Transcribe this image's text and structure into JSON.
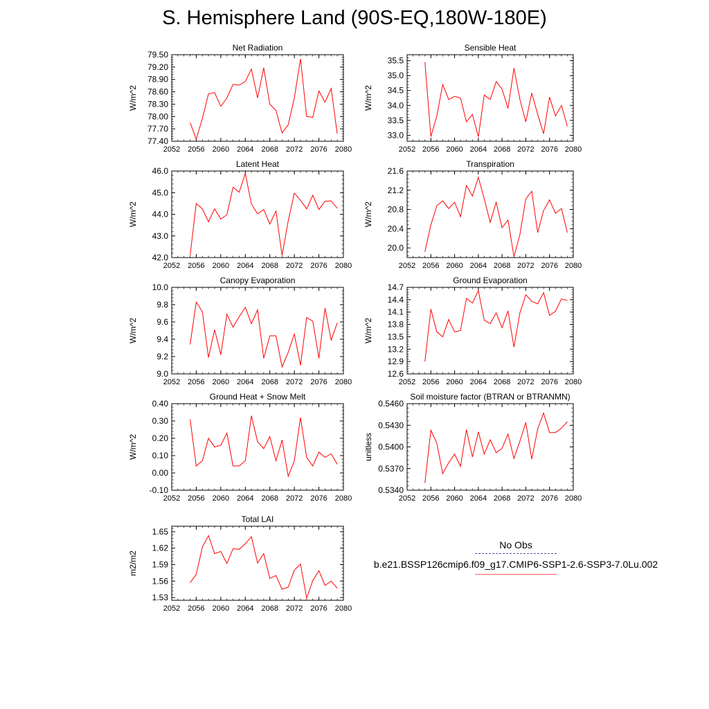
{
  "page": {
    "title": "S. Hemisphere Land (90S-EQ,180W-180E)"
  },
  "legend": {
    "obs_label": "No Obs",
    "model_label": "b.e21.BSSP126cmip6.f09_g17.CMIP6-SSP1-2.6-SSP3-7.0Lu.002",
    "obs_color": "#4a4aa8",
    "model_color": "#ff0000"
  },
  "chart_data": [
    {
      "type": "line",
      "title": "Net Radiation",
      "ylabel": "W/m^2",
      "xlabel": "",
      "x": [
        2055,
        2056,
        2057,
        2058,
        2059,
        2060,
        2061,
        2062,
        2063,
        2064,
        2065,
        2066,
        2067,
        2068,
        2069,
        2070,
        2071,
        2072,
        2073,
        2074,
        2075,
        2076,
        2077,
        2078,
        2079
      ],
      "xlim": [
        2052,
        2080
      ],
      "xticks": [
        "2052",
        "2056",
        "2060",
        "2064",
        "2068",
        "2072",
        "2076",
        "2080"
      ],
      "ylim": [
        77.4,
        79.5
      ],
      "yticks": [
        "77.40",
        "77.70",
        "78.00",
        "78.30",
        "78.60",
        "78.90",
        "79.20",
        "79.50"
      ],
      "series": [
        {
          "color": "#ff0000",
          "values": [
            77.85,
            77.45,
            77.95,
            78.55,
            78.58,
            78.25,
            78.45,
            78.78,
            78.76,
            78.85,
            79.15,
            78.45,
            79.18,
            78.3,
            78.15,
            77.6,
            77.8,
            78.45,
            79.4,
            78.0,
            77.98,
            78.62,
            78.35,
            78.68,
            77.58
          ]
        }
      ]
    },
    {
      "type": "line",
      "title": "Sensible Heat",
      "ylabel": "W/m^2",
      "xlabel": "",
      "x": [
        2055,
        2056,
        2057,
        2058,
        2059,
        2060,
        2061,
        2062,
        2063,
        2064,
        2065,
        2066,
        2067,
        2068,
        2069,
        2070,
        2071,
        2072,
        2073,
        2074,
        2075,
        2076,
        2077,
        2078,
        2079
      ],
      "xlim": [
        2052,
        2080
      ],
      "xticks": [
        "2052",
        "2056",
        "2060",
        "2064",
        "2068",
        "2072",
        "2076",
        "2080"
      ],
      "ylim": [
        32.8,
        35.7
      ],
      "yticks": [
        "33.0",
        "33.5",
        "34.0",
        "34.5",
        "35.0",
        "35.5"
      ],
      "series": [
        {
          "color": "#ff0000",
          "values": [
            35.45,
            32.95,
            33.65,
            34.7,
            34.2,
            34.3,
            34.25,
            33.45,
            33.7,
            32.95,
            34.35,
            34.2,
            34.8,
            34.55,
            33.9,
            35.25,
            34.2,
            33.45,
            34.42,
            33.7,
            33.05,
            34.28,
            33.65,
            34.0,
            33.3
          ]
        }
      ]
    },
    {
      "type": "line",
      "title": "Latent Heat",
      "ylabel": "W/m^2",
      "xlabel": "",
      "x": [
        2055,
        2056,
        2057,
        2058,
        2059,
        2060,
        2061,
        2062,
        2063,
        2064,
        2065,
        2066,
        2067,
        2068,
        2069,
        2070,
        2071,
        2072,
        2073,
        2074,
        2075,
        2076,
        2077,
        2078,
        2079
      ],
      "xlim": [
        2052,
        2080
      ],
      "xticks": [
        "2052",
        "2056",
        "2060",
        "2064",
        "2068",
        "2072",
        "2076",
        "2080"
      ],
      "ylim": [
        42.0,
        46.0
      ],
      "yticks": [
        "42.0",
        "43.0",
        "44.0",
        "45.0",
        "46.0"
      ],
      "series": [
        {
          "color": "#ff0000",
          "values": [
            42.1,
            44.5,
            44.25,
            43.65,
            44.25,
            43.78,
            43.98,
            45.25,
            45.02,
            45.88,
            44.48,
            44.02,
            44.22,
            43.55,
            44.15,
            42.1,
            43.7,
            44.98,
            44.65,
            44.25,
            44.88,
            44.22,
            44.6,
            44.62,
            44.28
          ]
        }
      ]
    },
    {
      "type": "line",
      "title": "Transpiration",
      "ylabel": "W/m^2",
      "xlabel": "",
      "x": [
        2055,
        2056,
        2057,
        2058,
        2059,
        2060,
        2061,
        2062,
        2063,
        2064,
        2065,
        2066,
        2067,
        2068,
        2069,
        2070,
        2071,
        2072,
        2073,
        2074,
        2075,
        2076,
        2077,
        2078,
        2079
      ],
      "xlim": [
        2052,
        2080
      ],
      "xticks": [
        "2052",
        "2056",
        "2060",
        "2064",
        "2068",
        "2072",
        "2076",
        "2080"
      ],
      "ylim": [
        19.8,
        21.6
      ],
      "yticks": [
        "20.0",
        "20.4",
        "20.8",
        "21.2",
        "21.6"
      ],
      "series": [
        {
          "color": "#ff0000",
          "values": [
            19.92,
            20.48,
            20.88,
            20.98,
            20.82,
            20.95,
            20.65,
            21.3,
            21.08,
            21.47,
            21.02,
            20.53,
            20.95,
            20.42,
            20.58,
            19.82,
            20.28,
            21.02,
            21.18,
            20.32,
            20.78,
            21.0,
            20.72,
            20.82,
            20.32
          ]
        }
      ]
    },
    {
      "type": "line",
      "title": "Canopy Evaporation",
      "ylabel": "W/m^2",
      "xlabel": "",
      "x": [
        2055,
        2056,
        2057,
        2058,
        2059,
        2060,
        2061,
        2062,
        2063,
        2064,
        2065,
        2066,
        2067,
        2068,
        2069,
        2070,
        2071,
        2072,
        2073,
        2074,
        2075,
        2076,
        2077,
        2078,
        2079
      ],
      "xlim": [
        2052,
        2080
      ],
      "xticks": [
        "2052",
        "2056",
        "2060",
        "2064",
        "2068",
        "2072",
        "2076",
        "2080"
      ],
      "ylim": [
        9.0,
        10.0
      ],
      "yticks": [
        "9.0",
        "9.2",
        "9.4",
        "9.6",
        "9.8",
        "10.0"
      ],
      "series": [
        {
          "color": "#ff0000",
          "values": [
            9.34,
            9.83,
            9.72,
            9.19,
            9.51,
            9.22,
            9.69,
            9.54,
            9.66,
            9.77,
            9.58,
            9.74,
            9.18,
            9.44,
            9.44,
            9.08,
            9.25,
            9.46,
            9.1,
            9.65,
            9.61,
            9.18,
            9.76,
            9.39,
            9.59
          ]
        }
      ]
    },
    {
      "type": "line",
      "title": "Ground Evaporation",
      "ylabel": "W/m^2",
      "xlabel": "",
      "x": [
        2055,
        2056,
        2057,
        2058,
        2059,
        2060,
        2061,
        2062,
        2063,
        2064,
        2065,
        2066,
        2067,
        2068,
        2069,
        2070,
        2071,
        2072,
        2073,
        2074,
        2075,
        2076,
        2077,
        2078,
        2079
      ],
      "xlim": [
        2052,
        2080
      ],
      "xticks": [
        "2052",
        "2056",
        "2060",
        "2064",
        "2068",
        "2072",
        "2076",
        "2080"
      ],
      "ylim": [
        12.6,
        14.7
      ],
      "yticks": [
        "12.6",
        "12.9",
        "13.2",
        "13.5",
        "13.8",
        "14.1",
        "14.4",
        "14.7"
      ],
      "series": [
        {
          "color": "#ff0000",
          "values": [
            12.9,
            14.17,
            13.62,
            13.5,
            13.92,
            13.62,
            13.65,
            14.43,
            14.32,
            14.62,
            13.9,
            13.82,
            14.08,
            13.72,
            14.13,
            13.25,
            14.08,
            14.52,
            14.36,
            14.3,
            14.57,
            14.02,
            14.12,
            14.42,
            14.38
          ]
        }
      ]
    },
    {
      "type": "line",
      "title": "Ground Heat + Snow Melt",
      "ylabel": "W/m^2",
      "xlabel": "",
      "x": [
        2055,
        2056,
        2057,
        2058,
        2059,
        2060,
        2061,
        2062,
        2063,
        2064,
        2065,
        2066,
        2067,
        2068,
        2069,
        2070,
        2071,
        2072,
        2073,
        2074,
        2075,
        2076,
        2077,
        2078,
        2079
      ],
      "xlim": [
        2052,
        2080
      ],
      "xticks": [
        "2052",
        "2056",
        "2060",
        "2064",
        "2068",
        "2072",
        "2076",
        "2080"
      ],
      "ylim": [
        -0.1,
        0.4
      ],
      "yticks": [
        "-0.10",
        "0.00",
        "0.10",
        "0.20",
        "0.30",
        "0.40"
      ],
      "series": [
        {
          "color": "#ff0000",
          "values": [
            0.31,
            0.04,
            0.07,
            0.2,
            0.15,
            0.16,
            0.23,
            0.04,
            0.04,
            0.07,
            0.33,
            0.18,
            0.14,
            0.21,
            0.07,
            0.19,
            -0.02,
            0.07,
            0.32,
            0.09,
            0.04,
            0.12,
            0.09,
            0.11,
            0.05
          ]
        }
      ]
    },
    {
      "type": "line",
      "title": "Soil moisture factor (BTRAN or BTRANMN)",
      "ylabel": "unitless",
      "xlabel": "",
      "x": [
        2055,
        2056,
        2057,
        2058,
        2059,
        2060,
        2061,
        2062,
        2063,
        2064,
        2065,
        2066,
        2067,
        2068,
        2069,
        2070,
        2071,
        2072,
        2073,
        2074,
        2075,
        2076,
        2077,
        2078,
        2079
      ],
      "xlim": [
        2052,
        2080
      ],
      "xticks": [
        "2052",
        "2056",
        "2060",
        "2064",
        "2068",
        "2072",
        "2076",
        "2080"
      ],
      "ylim": [
        0.534,
        0.546
      ],
      "yticks": [
        "0.5340",
        "0.5370",
        "0.5400",
        "0.5430",
        "0.5460"
      ],
      "series": [
        {
          "color": "#ff0000",
          "values": [
            0.535,
            0.5423,
            0.5405,
            0.5363,
            0.5378,
            0.539,
            0.5373,
            0.5424,
            0.5386,
            0.5421,
            0.539,
            0.541,
            0.5392,
            0.5398,
            0.5418,
            0.5384,
            0.5408,
            0.5434,
            0.5383,
            0.5425,
            0.5447,
            0.542,
            0.542,
            0.5426,
            0.5435
          ]
        }
      ]
    },
    {
      "type": "line",
      "title": "Total LAI",
      "ylabel": "m2/m2",
      "xlabel": "",
      "x": [
        2055,
        2056,
        2057,
        2058,
        2059,
        2060,
        2061,
        2062,
        2063,
        2064,
        2065,
        2066,
        2067,
        2068,
        2069,
        2070,
        2071,
        2072,
        2073,
        2074,
        2075,
        2076,
        2077,
        2078,
        2079
      ],
      "xlim": [
        2052,
        2080
      ],
      "xticks": [
        "2052",
        "2056",
        "2060",
        "2064",
        "2068",
        "2072",
        "2076",
        "2080"
      ],
      "ylim": [
        1.525,
        1.66
      ],
      "yticks": [
        "1.53",
        "1.56",
        "1.59",
        "1.62",
        "1.65"
      ],
      "series": [
        {
          "color": "#ff0000",
          "values": [
            1.557,
            1.572,
            1.622,
            1.643,
            1.61,
            1.614,
            1.592,
            1.619,
            1.618,
            1.628,
            1.641,
            1.593,
            1.61,
            1.565,
            1.57,
            1.545,
            1.549,
            1.58,
            1.591,
            1.529,
            1.561,
            1.579,
            1.552,
            1.56,
            1.547
          ]
        }
      ]
    }
  ]
}
